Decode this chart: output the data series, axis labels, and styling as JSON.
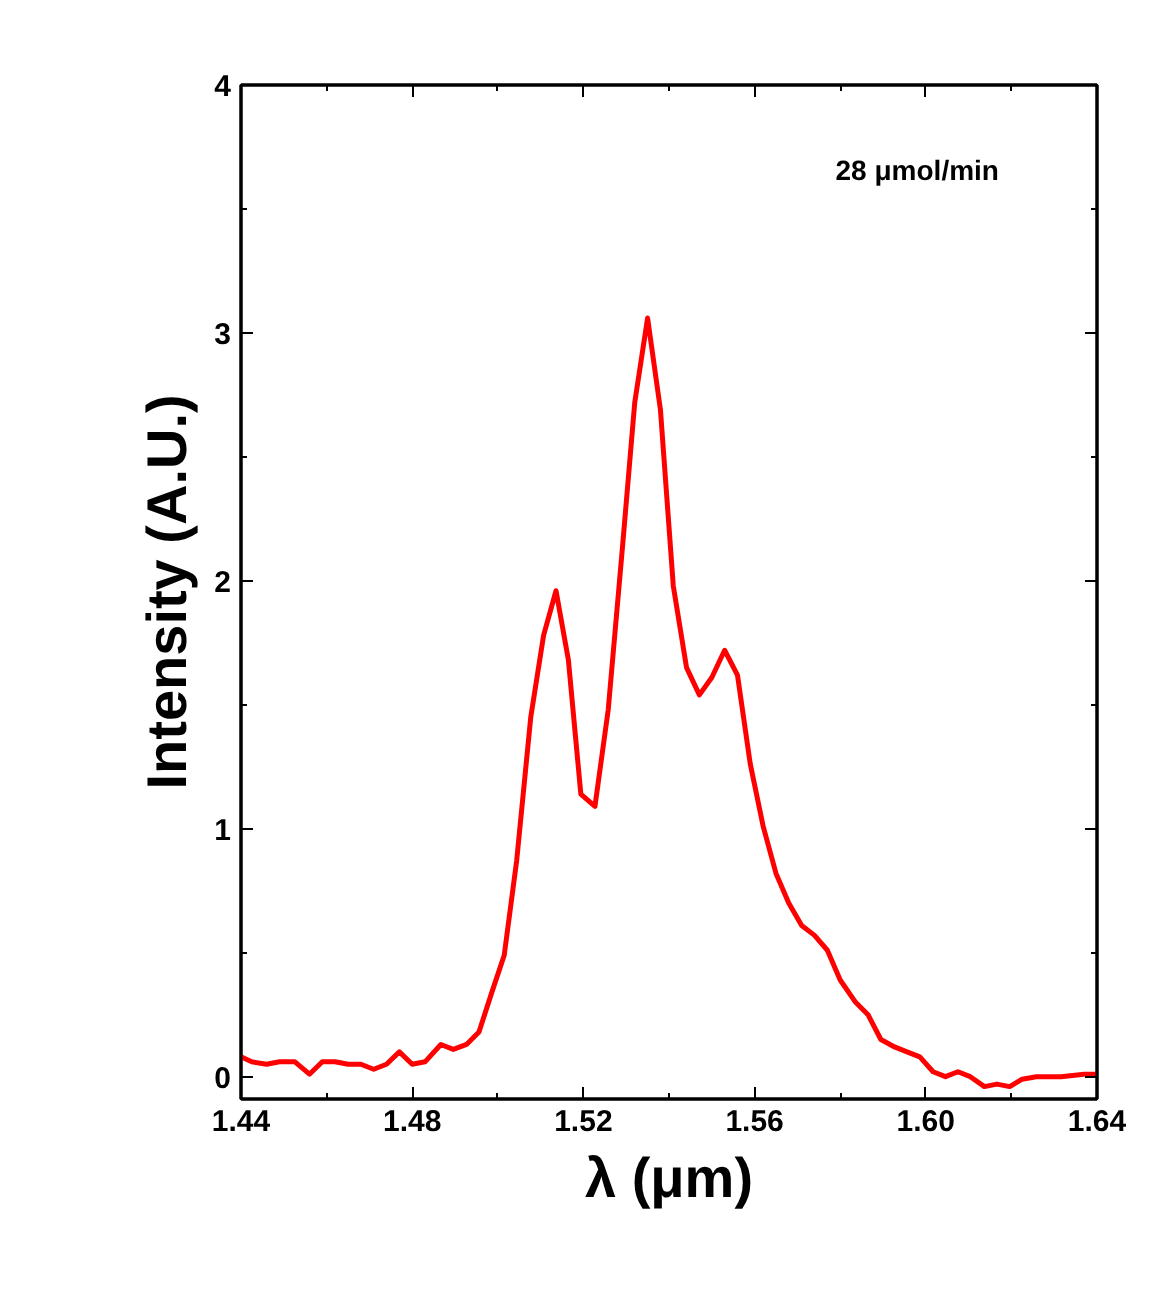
{
  "chart_data": {
    "type": "line",
    "xlabel": "λ (μm)",
    "ylabel": "Intensity (A.U.)",
    "annotations": [
      "28 μmol/min"
    ],
    "x": [
      1.44,
      1.4425,
      1.446,
      1.449,
      1.4526,
      1.456,
      1.459,
      1.462,
      1.465,
      1.468,
      1.471,
      1.474,
      1.477,
      1.48,
      1.483,
      1.4867,
      1.4896,
      1.4927,
      1.4956,
      1.4986,
      1.5015,
      1.5044,
      1.5077,
      1.5107,
      1.5136,
      1.5165,
      1.5194,
      1.5227,
      1.5258,
      1.5292,
      1.532,
      1.535,
      1.538,
      1.541,
      1.5441,
      1.5471,
      1.55,
      1.553,
      1.556,
      1.559,
      1.562,
      1.565,
      1.568,
      1.571,
      1.574,
      1.577,
      1.58,
      1.5836,
      1.5865,
      1.5895,
      1.5927,
      1.5956,
      1.5986,
      1.6017,
      1.6046,
      1.6075,
      1.6104,
      1.6137,
      1.6166,
      1.6196,
      1.6225,
      1.6258,
      1.6316,
      1.637,
      1.64
    ],
    "series": [
      {
        "color": "#ff0000",
        "values": [
          0.08,
          0.06,
          0.05,
          0.06,
          0.06,
          0.01,
          0.06,
          0.06,
          0.05,
          0.05,
          0.03,
          0.05,
          0.1,
          0.05,
          0.06,
          0.13,
          0.11,
          0.13,
          0.18,
          0.34,
          0.49,
          0.87,
          1.45,
          1.78,
          1.96,
          1.68,
          1.14,
          1.09,
          1.48,
          2.15,
          2.72,
          3.06,
          2.69,
          1.98,
          1.65,
          1.54,
          1.61,
          1.72,
          1.62,
          1.26,
          1.01,
          0.82,
          0.7,
          0.61,
          0.57,
          0.51,
          0.39,
          0.3,
          0.25,
          0.15,
          0.12,
          0.1,
          0.08,
          0.02,
          0.0,
          0.02,
          0.0,
          -0.04,
          -0.03,
          -0.04,
          -0.01,
          0,
          0,
          0.01,
          0.01
        ]
      }
    ],
    "xlim": [
      1.44,
      1.64
    ],
    "ylim": [
      -0.09,
      4
    ],
    "xticks": [
      {
        "value": 1.44,
        "label": "1.44"
      },
      {
        "value": 1.46,
        "label": null
      },
      {
        "value": 1.48,
        "label": "1.48"
      },
      {
        "value": 1.5,
        "label": null
      },
      {
        "value": 1.52,
        "label": "1.52"
      },
      {
        "value": 1.54,
        "label": null
      },
      {
        "value": 1.56,
        "label": "1.56"
      },
      {
        "value": 1.58,
        "label": null
      },
      {
        "value": 1.6,
        "label": "1.60"
      },
      {
        "value": 1.62,
        "label": null
      },
      {
        "value": 1.64,
        "label": "1.64"
      }
    ],
    "yticks": [
      0,
      {
        "value": 0.5,
        "label": null
      },
      1,
      {
        "value": 1.5,
        "label": null
      },
      2,
      {
        "value": 2.5,
        "label": null
      },
      3,
      {
        "value": 3.5,
        "label": null
      },
      4
    ],
    "grid": false,
    "marker": "none",
    "line_style": "solid"
  }
}
